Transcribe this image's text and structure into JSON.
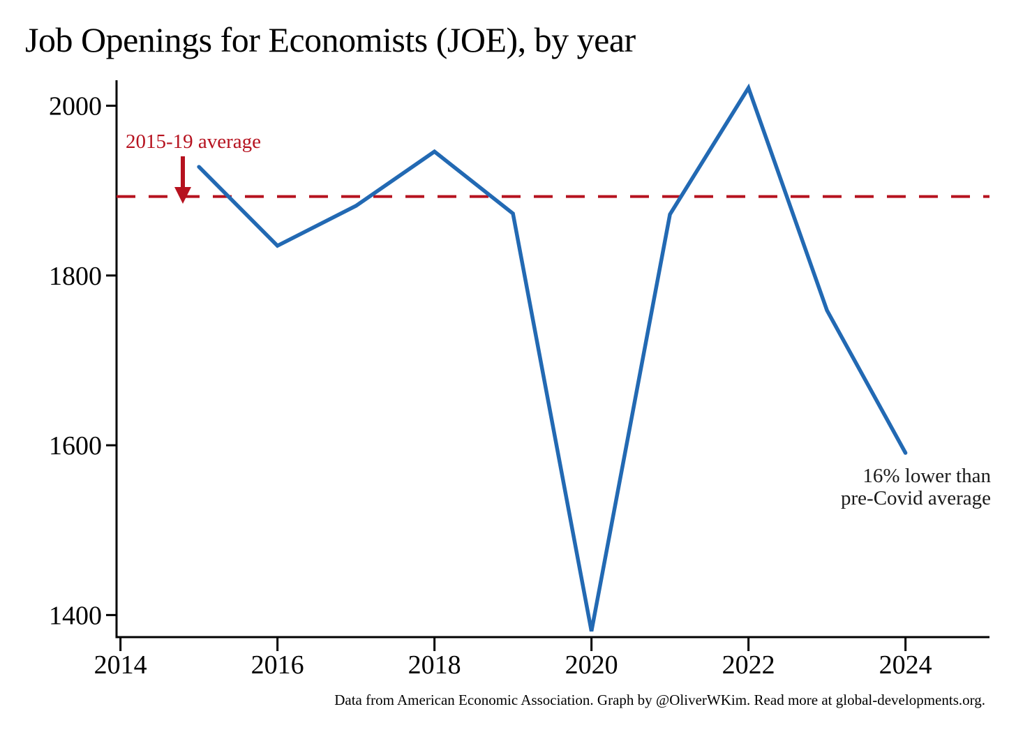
{
  "title": "Job Openings for Economists (JOE), by year",
  "annotations": {
    "average_label": "2015-19 average",
    "note_line1": "16% lower than",
    "note_line2": "pre-Covid average"
  },
  "footer": "Data from American Economic Association. Graph by @OliverWKim. Read more at global-developments.org.",
  "colors": {
    "line_blue": "#2269b3",
    "accent_red": "#b6121f",
    "axis_black": "#000000"
  },
  "chart_data": {
    "type": "line",
    "title": "Job Openings for Economists (JOE), by year",
    "x": [
      2015,
      2016,
      2017,
      2018,
      2019,
      2020,
      2021,
      2022,
      2023,
      2024
    ],
    "series": [
      {
        "name": "JOE job openings",
        "values": [
          1928,
          1835,
          1882,
          1946,
          1873,
          1381,
          1872,
          2021,
          1759,
          1591
        ]
      }
    ],
    "reference_line": {
      "value": 1893,
      "label": "2015-19 average",
      "style": "dashed"
    },
    "x_ticks": [
      2014,
      2016,
      2018,
      2020,
      2022,
      2024
    ],
    "y_ticks": [
      1400,
      1600,
      1800,
      2000
    ],
    "xlim": [
      2013.95,
      2025.07
    ],
    "ylim": [
      1374,
      2030
    ],
    "xlabel": "",
    "ylabel": "",
    "grid": false,
    "legend": false
  }
}
